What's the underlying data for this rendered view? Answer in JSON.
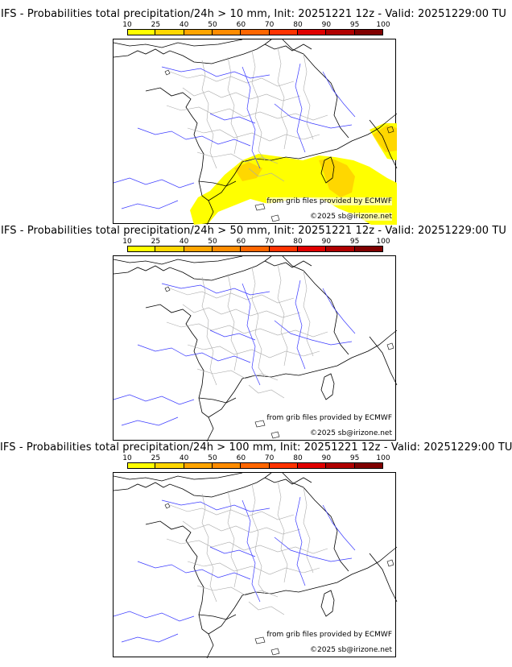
{
  "colorbar": {
    "ticks": [
      "10",
      "25",
      "40",
      "50",
      "60",
      "70",
      "80",
      "90",
      "95",
      "100"
    ],
    "colors": [
      "#ffff00",
      "#ffd700",
      "#ffa500",
      "#ff8c00",
      "#ff6600",
      "#ff3300",
      "#e00000",
      "#b00000",
      "#800000"
    ]
  },
  "panels": [
    {
      "title": "IFS - Probabilities total precipitation/24h > 10 mm, Init: 20251221 12z - Valid: 20251229:00 TU",
      "has_precip": true,
      "source": "from grib files provided by ECMWF",
      "copyright": "©2025 sb@irizone.net"
    },
    {
      "title": "IFS - Probabilities total precipitation/24h > 50 mm, Init: 20251221 12z - Valid: 20251229:00 TU",
      "has_precip": false,
      "source": "from grib files provided by ECMWF",
      "copyright": "©2025 sb@irizone.net"
    },
    {
      "title": "IFS - Probabilities total precipitation/24h > 100 mm, Init: 20251221 12z - Valid: 20251229:00 TU",
      "has_precip": false,
      "source": "from grib files provided by ECMWF",
      "copyright": "©2025 sb@irizone.net"
    }
  ],
  "colors": {
    "coast": "#000000",
    "borders": "#aaaaaa",
    "rivers": "#3a3aff",
    "precip_low": "#ffff00",
    "precip_mid": "#ffd700"
  }
}
